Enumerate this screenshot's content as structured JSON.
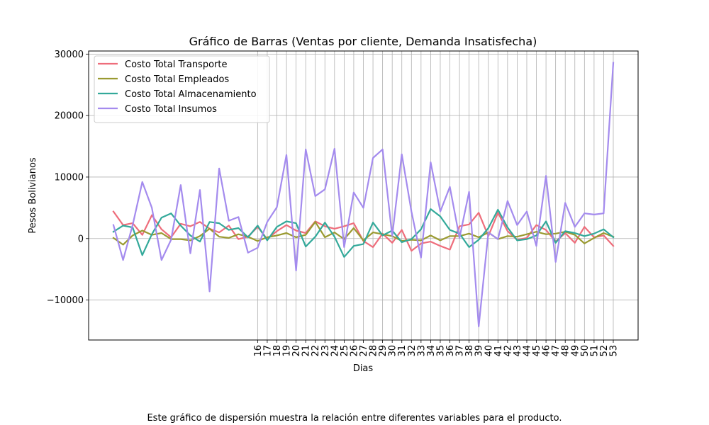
{
  "caption": "Este gráfico de dispersión muestra la relación entre diferentes variables para el producto.",
  "chart_data": {
    "type": "line",
    "title": "Gráfico de Barras (Ventas por cliente, Demanda Insatisfecha)",
    "xlabel": "Dias",
    "ylabel": "Pesos Bolivianos",
    "ylim": [
      -16500,
      30500
    ],
    "yticks": [
      -10000,
      0,
      10000,
      20000,
      30000
    ],
    "ytick_labels": [
      "−10000",
      "0",
      "10000",
      "20000",
      "30000"
    ],
    "grid": true,
    "legend_position": "top-left",
    "x": [
      1,
      2,
      3,
      4,
      5,
      6,
      7,
      8,
      9,
      10,
      11,
      12,
      13,
      14,
      15,
      16,
      17,
      18,
      19,
      20,
      21,
      22,
      23,
      24,
      25,
      26,
      27,
      28,
      29,
      30,
      31,
      32,
      33,
      34,
      35,
      36,
      37,
      38,
      39,
      40,
      41,
      42,
      43,
      44,
      45,
      46,
      47,
      48,
      49,
      50,
      51,
      52,
      53
    ],
    "x_tick_labels": [
      "16",
      "17",
      "18",
      "19",
      "20",
      "21",
      "22",
      "23",
      "24",
      "25",
      "26",
      "27",
      "28",
      "29",
      "30",
      "31",
      "32",
      "33",
      "34",
      "35",
      "36",
      "37",
      "38",
      "39",
      "40",
      "41",
      "42",
      "43",
      "44",
      "45",
      "46",
      "47",
      "48",
      "49",
      "50",
      "51",
      "52",
      "53"
    ],
    "series": [
      {
        "name": "Costo Total Transporte",
        "color": "#ee6d7b",
        "values": [
          4400,
          2200,
          2500,
          600,
          3800,
          1500,
          200,
          2400,
          2000,
          2700,
          1600,
          1000,
          2100,
          -100,
          300,
          1900,
          -100,
          1200,
          2200,
          1300,
          900,
          2800,
          2000,
          1600,
          2000,
          2500,
          -400,
          -1400,
          800,
          -700,
          1400,
          -2000,
          -800,
          -500,
          -1200,
          -1800,
          2000,
          2300,
          4200,
          400,
          4200,
          1200,
          -200,
          100,
          2200,
          1400,
          -500,
          900,
          -700,
          1900,
          200,
          500,
          -1200
        ]
      },
      {
        "name": "Costo Total Empleados",
        "color": "#9a9a31",
        "values": [
          100,
          -1000,
          500,
          1300,
          600,
          900,
          -100,
          -100,
          -300,
          400,
          1600,
          300,
          100,
          700,
          300,
          -400,
          200,
          500,
          900,
          200,
          600,
          2700,
          200,
          1000,
          -100,
          1700,
          -300,
          1000,
          700,
          400,
          -400,
          -200,
          -300,
          500,
          -300,
          400,
          400,
          800,
          200,
          1000,
          -100,
          400,
          300,
          700,
          1100,
          700,
          800,
          1100,
          600,
          -800,
          100,
          900,
          300
        ]
      },
      {
        "name": "Costo Total Almacenamiento",
        "color": "#33a99a",
        "values": [
          1100,
          2100,
          1800,
          -2700,
          700,
          3400,
          4100,
          2100,
          500,
          -500,
          2700,
          2500,
          1400,
          1700,
          200,
          2100,
          -300,
          1900,
          2800,
          2500,
          -1300,
          300,
          2600,
          300,
          -3000,
          -1200,
          -900,
          2600,
          500,
          1300,
          -600,
          -100,
          1500,
          4800,
          3600,
          1400,
          800,
          -1400,
          -200,
          1700,
          4700,
          1800,
          -300,
          -100,
          500,
          2800,
          -700,
          1200,
          900,
          400,
          800,
          1500,
          200
        ]
      },
      {
        "name": "Costo Total Insumos",
        "color": "#a48bee",
        "values": [
          2200,
          -3500,
          2200,
          9200,
          5000,
          -3500,
          -200,
          8700,
          -2400,
          7900,
          -8600,
          11400,
          2900,
          3500,
          -2300,
          -1500,
          2700,
          5100,
          13600,
          -5200,
          14500,
          6900,
          8000,
          14600,
          -1400,
          7500,
          5000,
          13100,
          14500,
          400,
          13700,
          4400,
          -3100,
          12400,
          4400,
          8400,
          100,
          7600,
          -14300,
          1000,
          -100,
          6100,
          2200,
          4400,
          -1200,
          10200,
          -3800,
          5800,
          1900,
          4100,
          3900,
          4100,
          28600
        ]
      }
    ]
  }
}
